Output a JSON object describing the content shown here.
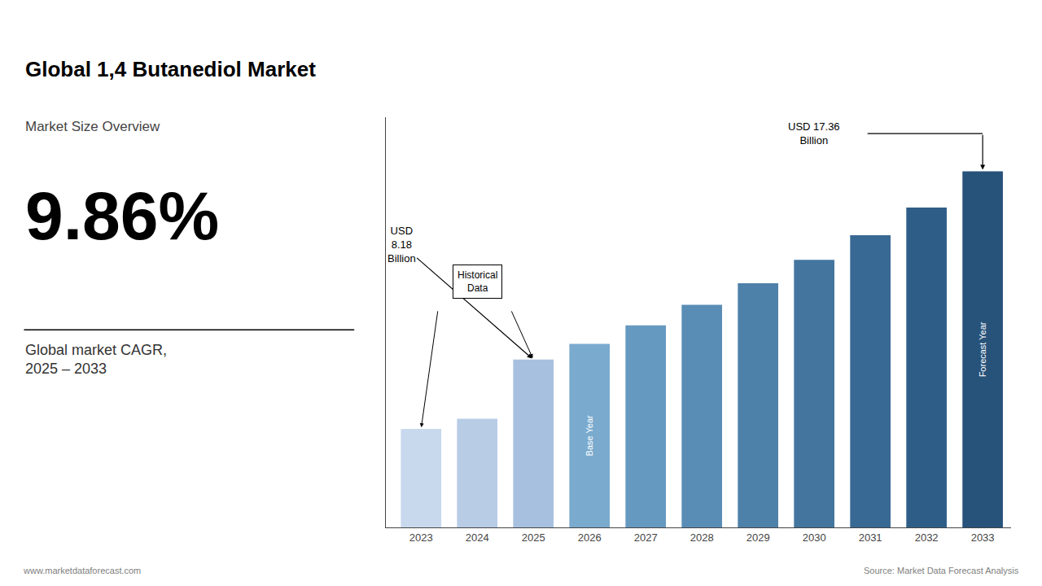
{
  "chart_data": {
    "type": "bar",
    "title": "Global 1,4 Butanediol Market",
    "subtitle": "Market Size Overview",
    "kpi": "9.86%",
    "kpi_label": "Global market CAGR,\n2025 – 2033",
    "categories": [
      "2023",
      "2024",
      "2025",
      "2026",
      "2027",
      "2028",
      "2029",
      "2030",
      "2031",
      "2032",
      "2033"
    ],
    "values": [
      4.8,
      5.3,
      8.18,
      8.95,
      9.85,
      10.85,
      11.9,
      13.05,
      14.25,
      15.6,
      17.36
    ],
    "colors": [
      "#c8d8ed",
      "#b8cce6",
      "#a8c0df",
      "#7aaace",
      "#6699c0",
      "#5a8db5",
      "#4e81aa",
      "#43759f",
      "#386994",
      "#2e5e88",
      "#27527a"
    ],
    "ylim": [
      0,
      20
    ],
    "tick_labels": "x",
    "grid": false,
    "annotations": [
      {
        "text": "USD\n8.18\nBillion",
        "x": "2025"
      },
      {
        "text": "USD 17.36\nBillion",
        "x": "2033"
      },
      {
        "text": "Historical\nData",
        "x": [
          "2023",
          "2025"
        ]
      },
      {
        "text": "Base Year",
        "x": "2026"
      },
      {
        "text": "Forecast Year",
        "x": "2033"
      }
    ],
    "footer_left": "www.marketdataforecast.com",
    "footer_right": "Source: Market Data Forecast Analysis"
  }
}
